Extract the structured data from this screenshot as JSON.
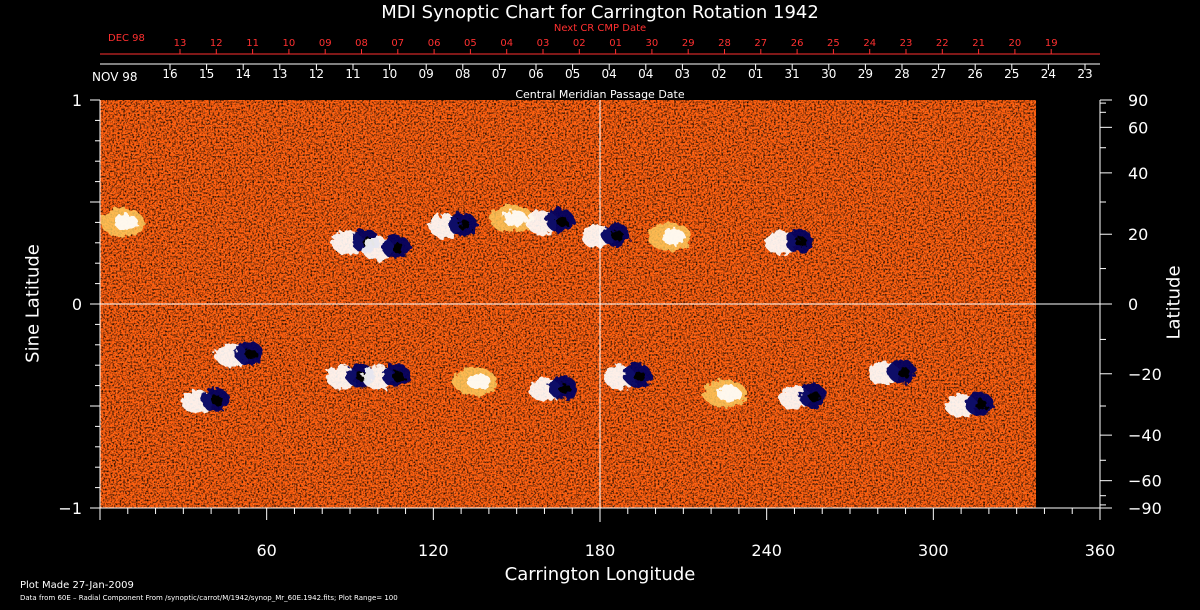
{
  "chart_data": {
    "type": "heatmap",
    "title": "MDI Synoptic Chart for Carrington Rotation 1942",
    "xlabel": "Carrington Longitude",
    "ylabel_left": "Sine Latitude",
    "ylabel_right": "Latitude",
    "xlim": [
      0,
      360
    ],
    "ylim": [
      -1,
      1
    ],
    "x_ticks": [
      60,
      120,
      180,
      240,
      300,
      360
    ],
    "y_ticks_left": [
      {
        "value": 1,
        "label": "1"
      },
      {
        "value": 0,
        "label": "0"
      },
      {
        "value": -1,
        "label": "−1"
      }
    ],
    "y_ticks_right": [
      {
        "lat": 90,
        "label": "90"
      },
      {
        "lat": 60,
        "label": "60"
      },
      {
        "lat": 40,
        "label": "40"
      },
      {
        "lat": 20,
        "label": "20"
      },
      {
        "lat": 0,
        "label": "0"
      },
      {
        "lat": -20,
        "label": "−20"
      },
      {
        "lat": -40,
        "label": "−40"
      },
      {
        "lat": -60,
        "label": "−60"
      },
      {
        "lat": -90,
        "label": "−90"
      }
    ],
    "top_axis_outer": {
      "title": "Next CR CMP Date",
      "month_label": "DEC 98",
      "color": "#ff3030",
      "labels": [
        "13",
        "12",
        "11",
        "10",
        "09",
        "08",
        "07",
        "06",
        "05",
        "04",
        "03",
        "02",
        "01",
        "30",
        "29",
        "28",
        "27",
        "26",
        "25",
        "24",
        "23",
        "22",
        "21",
        "20",
        "19"
      ]
    },
    "top_axis_inner": {
      "title": "Central Meridian Passage Date",
      "month_label": "NOV 98",
      "labels": [
        "16",
        "15",
        "14",
        "13",
        "12",
        "11",
        "10",
        "09",
        "08",
        "07",
        "06",
        "05",
        "04",
        "04",
        "03",
        "02",
        "01",
        "31",
        "30",
        "29",
        "28",
        "27",
        "26",
        "25",
        "24",
        "23"
      ]
    },
    "data_extent_longitude": 337,
    "crosshair": {
      "longitude": 180,
      "sine_latitude": 0
    },
    "active_regions": [
      {
        "lon": 8,
        "sinlat": 0.4,
        "polarity": "white"
      },
      {
        "lon": 92,
        "sinlat": 0.3,
        "polarity": "mixed"
      },
      {
        "lon": 103,
        "sinlat": 0.27,
        "polarity": "mixed"
      },
      {
        "lon": 127,
        "sinlat": 0.38,
        "polarity": "mixed"
      },
      {
        "lon": 148,
        "sinlat": 0.42,
        "polarity": "white"
      },
      {
        "lon": 162,
        "sinlat": 0.4,
        "polarity": "mixed"
      },
      {
        "lon": 182,
        "sinlat": 0.33,
        "polarity": "mixed"
      },
      {
        "lon": 205,
        "sinlat": 0.33,
        "polarity": "white"
      },
      {
        "lon": 248,
        "sinlat": 0.3,
        "polarity": "mixed"
      },
      {
        "lon": 38,
        "sinlat": -0.48,
        "polarity": "mixed"
      },
      {
        "lon": 50,
        "sinlat": -0.25,
        "polarity": "mixed"
      },
      {
        "lon": 90,
        "sinlat": -0.36,
        "polarity": "mixed"
      },
      {
        "lon": 103,
        "sinlat": -0.36,
        "polarity": "mixed"
      },
      {
        "lon": 135,
        "sinlat": -0.38,
        "polarity": "white"
      },
      {
        "lon": 163,
        "sinlat": -0.42,
        "polarity": "mixed"
      },
      {
        "lon": 190,
        "sinlat": -0.36,
        "polarity": "mixed"
      },
      {
        "lon": 225,
        "sinlat": -0.44,
        "polarity": "white"
      },
      {
        "lon": 253,
        "sinlat": -0.46,
        "polarity": "mixed"
      },
      {
        "lon": 285,
        "sinlat": -0.34,
        "polarity": "mixed"
      },
      {
        "lon": 313,
        "sinlat": -0.5,
        "polarity": "mixed"
      }
    ]
  },
  "footer": {
    "plot_made": "Plot Made 27-Jan-2009",
    "data_source": "Data from 60E – Radial Component From /synoptic/carrot/M/1942/synop_Mr_60E.1942.fits; Plot Range= 100"
  },
  "colors": {
    "background": "#000000",
    "axis": "#ffffff",
    "top_axis_outer": "#ff3030",
    "field_base": "#ff6010",
    "field_dark": "#b01800",
    "positive_polarity": "#ffffff",
    "negative_polarity": "#000060"
  }
}
